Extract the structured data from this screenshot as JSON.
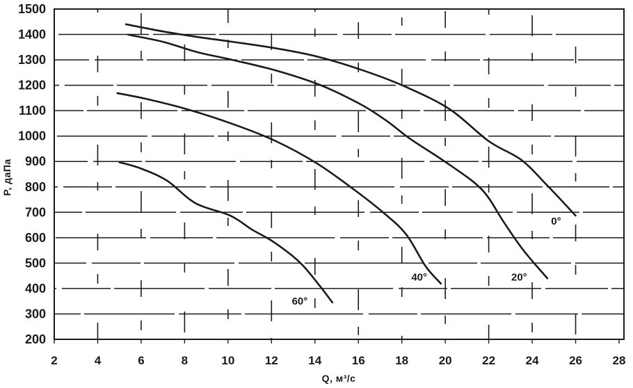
{
  "page": {
    "background": "#ffffff",
    "description": "scanned fan performance curves P(Q) for blade angles"
  },
  "chart_data": {
    "type": "line",
    "title": "",
    "xlabel": "Q, м³/с",
    "ylabel": "P, даПа",
    "xlim": [
      2,
      28
    ],
    "ylim": [
      200,
      1500
    ],
    "x_ticks": [
      2,
      4,
      6,
      8,
      10,
      12,
      14,
      16,
      18,
      20,
      22,
      24,
      26,
      28
    ],
    "y_ticks": [
      200,
      300,
      400,
      500,
      600,
      700,
      800,
      900,
      1000,
      1100,
      1200,
      1300,
      1400,
      1500
    ],
    "grid": true,
    "legend_position": "inline-curve-labels",
    "ink_color": "#1a1a1a",
    "series": [
      {
        "id": "0deg",
        "name": "0°",
        "label_q": 25.1,
        "label_p": 665,
        "points": [
          [
            5.3,
            1440
          ],
          [
            7.0,
            1412
          ],
          [
            8.6,
            1390
          ],
          [
            10.2,
            1371
          ],
          [
            12.3,
            1344
          ],
          [
            14.2,
            1311
          ],
          [
            16.3,
            1256
          ],
          [
            18.2,
            1193
          ],
          [
            20.2,
            1106
          ],
          [
            22.0,
            980
          ],
          [
            23.5,
            906
          ],
          [
            24.7,
            805
          ],
          [
            26.0,
            687
          ]
        ]
      },
      {
        "id": "20deg",
        "name": "20°",
        "label_q": 23.4,
        "label_p": 445,
        "points": [
          [
            5.4,
            1399
          ],
          [
            7.0,
            1371
          ],
          [
            8.6,
            1330
          ],
          [
            10.2,
            1300
          ],
          [
            12.3,
            1256
          ],
          [
            14.3,
            1199
          ],
          [
            16.1,
            1125
          ],
          [
            17.3,
            1060
          ],
          [
            18.4,
            988
          ],
          [
            20.2,
            887
          ],
          [
            21.7,
            788
          ],
          [
            22.7,
            660
          ],
          [
            23.6,
            550
          ],
          [
            24.7,
            440
          ]
        ]
      },
      {
        "id": "40deg",
        "name": "40°",
        "label_q": 18.8,
        "label_p": 445,
        "points": [
          [
            4.9,
            1169
          ],
          [
            6.2,
            1147
          ],
          [
            8.1,
            1106
          ],
          [
            10.2,
            1048
          ],
          [
            12.2,
            980
          ],
          [
            14.1,
            892
          ],
          [
            15.9,
            783
          ],
          [
            17.2,
            695
          ],
          [
            18.2,
            613
          ],
          [
            19.1,
            487
          ],
          [
            19.8,
            419
          ]
        ]
      },
      {
        "id": "60deg",
        "name": "60°",
        "label_q": 13.3,
        "label_p": 350,
        "points": [
          [
            5.0,
            897
          ],
          [
            6.0,
            872
          ],
          [
            7.2,
            824
          ],
          [
            8.5,
            736
          ],
          [
            10.1,
            687
          ],
          [
            11.1,
            632
          ],
          [
            12.1,
            583
          ],
          [
            13.3,
            503
          ],
          [
            14.2,
            413
          ],
          [
            14.8,
            345
          ]
        ]
      }
    ]
  }
}
